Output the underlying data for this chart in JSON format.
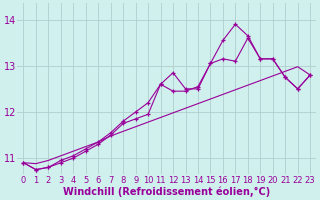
{
  "background_color": "#d0f0ee",
  "grid_color": "#b0cece",
  "line_color": "#990099",
  "marker": "+",
  "xlabel": "Windchill (Refroidissement éolien,°C)",
  "xlabel_color": "#990099",
  "ylabel_ticks": [
    11,
    12,
    13,
    14
  ],
  "xlim": [
    -0.5,
    23.5
  ],
  "ylim": [
    10.65,
    14.35
  ],
  "series1_straight": [
    10.9,
    10.88,
    10.95,
    11.05,
    11.15,
    11.25,
    11.35,
    11.48,
    11.58,
    11.68,
    11.78,
    11.88,
    11.98,
    12.08,
    12.18,
    12.28,
    12.38,
    12.48,
    12.58,
    12.68,
    12.78,
    12.88,
    12.98,
    12.8
  ],
  "series2_jagged": [
    10.9,
    10.75,
    10.8,
    10.9,
    11.0,
    11.15,
    11.3,
    11.5,
    11.75,
    11.85,
    11.95,
    12.6,
    12.45,
    12.45,
    12.55,
    13.05,
    13.15,
    13.1,
    13.6,
    13.15,
    13.15,
    12.75,
    12.5,
    12.8
  ],
  "series3_jagged": [
    10.9,
    10.75,
    10.8,
    10.95,
    11.05,
    11.2,
    11.35,
    11.55,
    11.8,
    12.0,
    12.2,
    12.6,
    12.85,
    12.5,
    12.5,
    13.05,
    13.55,
    13.9,
    13.65,
    13.15,
    13.15,
    12.75,
    12.5,
    12.8
  ],
  "xtick_labels": [
    "0",
    "1",
    "2",
    "3",
    "4",
    "5",
    "6",
    "7",
    "8",
    "9",
    "10",
    "11",
    "12",
    "13",
    "14",
    "15",
    "16",
    "17",
    "18",
    "19",
    "20",
    "21",
    "22",
    "23"
  ],
  "tick_color": "#990099",
  "tick_fontsize": 6.0,
  "xlabel_fontsize": 7.0
}
